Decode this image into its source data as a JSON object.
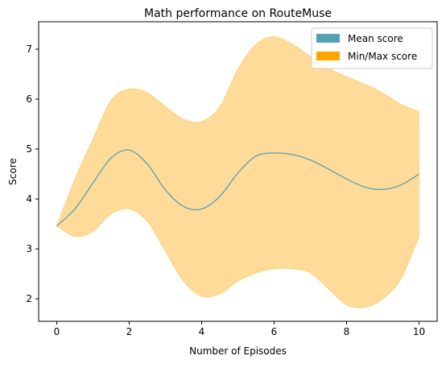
{
  "chart_data": {
    "type": "line",
    "title": "Math performance on RouteMuse",
    "xlabel": "Number of Episodes",
    "ylabel": "Score",
    "xlim": [
      -0.5,
      10.5
    ],
    "ylim": [
      1.55,
      7.55
    ],
    "x_ticks": [
      0,
      2,
      4,
      6,
      8,
      10
    ],
    "y_ticks": [
      2,
      3,
      4,
      5,
      6,
      7
    ],
    "grid": false,
    "legend_position": "top-right",
    "x": [
      0,
      0.5,
      1,
      1.5,
      2,
      2.5,
      3,
      3.5,
      4,
      4.5,
      5,
      5.5,
      6,
      6.5,
      7,
      7.5,
      8,
      8.5,
      9,
      9.5,
      10
    ],
    "series": [
      {
        "name": "Mean score",
        "kind": "line",
        "color": "#55a1b3",
        "values": [
          3.46,
          3.8,
          4.32,
          4.82,
          4.98,
          4.7,
          4.18,
          3.85,
          3.8,
          4.05,
          4.52,
          4.86,
          4.92,
          4.89,
          4.78,
          4.6,
          4.4,
          4.24,
          4.19,
          4.28,
          4.5
        ]
      },
      {
        "name": "Min/Max score",
        "kind": "band",
        "color": "#ffa500",
        "lower": [
          3.46,
          3.25,
          3.35,
          3.7,
          3.8,
          3.55,
          2.95,
          2.35,
          2.05,
          2.1,
          2.35,
          2.52,
          2.6,
          2.6,
          2.52,
          2.2,
          1.88,
          1.83,
          2.0,
          2.4,
          3.25
        ],
        "upper": [
          3.46,
          4.4,
          5.2,
          5.98,
          6.2,
          6.13,
          5.85,
          5.6,
          5.55,
          5.85,
          6.6,
          7.1,
          7.25,
          7.1,
          6.85,
          6.62,
          6.45,
          6.3,
          6.12,
          5.9,
          5.75
        ]
      }
    ]
  }
}
